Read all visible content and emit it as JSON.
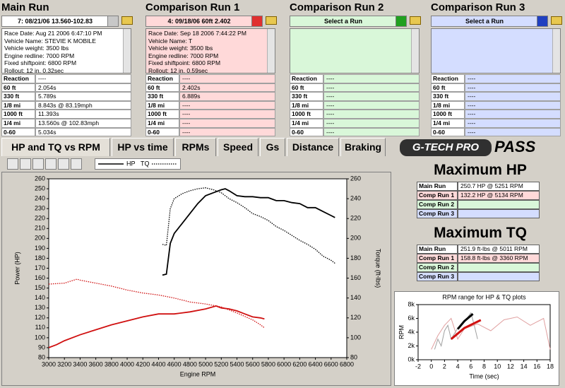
{
  "runs": [
    {
      "title": "Main Run",
      "selector": "7:  08/21/06 13.560-102.83",
      "color": "#ffffff",
      "accent": "#c8c8c8",
      "info": [
        "Race Date: Aug 21 2006  6:47:10 PM",
        "Vehicle Name: STEVIE K MOBILE",
        "Vehicle weight: 3500 lbs",
        "Engine redline: 7000 RPM",
        "Fixed shiftpoint: 6800 RPM",
        "Rollout: 12 in, 0.32sec"
      ],
      "rows": [
        [
          "Reaction",
          "----"
        ],
        [
          "60 ft",
          "2.054s"
        ],
        [
          "330 ft",
          "5.789s"
        ],
        [
          "1/8 mi",
          "8.843s @ 83.19mph"
        ],
        [
          "1000 ft",
          "11.393s"
        ],
        [
          "1/4 mi",
          "13.560s @ 102.83mph"
        ],
        [
          "0-60",
          "5.034s"
        ]
      ]
    },
    {
      "title": "Comparison Run 1",
      "selector": "4:  09/18/06 60ft 2.402",
      "color": "#ffd9d9",
      "accent": "#e03030",
      "info": [
        "Race Date: Sep 18 2006  7:44:22 PM",
        "Vehicle Name: T",
        "Vehicle weight: 3500 lbs",
        "Engine redline: 7000 RPM",
        "Fixed shiftpoint: 6800 RPM",
        "Rollout: 12 in, 0.59sec"
      ],
      "rows": [
        [
          "Reaction",
          "----"
        ],
        [
          "60 ft",
          "2.402s"
        ],
        [
          "330 ft",
          "6.889s"
        ],
        [
          "1/8 mi",
          "----"
        ],
        [
          "1000 ft",
          "----"
        ],
        [
          "1/4 mi",
          "----"
        ],
        [
          "0-60",
          "----"
        ]
      ]
    },
    {
      "title": "Comparison Run 2",
      "selector": "Select a Run",
      "color": "#d9f7d9",
      "accent": "#20a020",
      "info": [],
      "rows": [
        [
          "Reaction",
          "----"
        ],
        [
          "60 ft",
          "----"
        ],
        [
          "330 ft",
          "----"
        ],
        [
          "1/8 mi",
          "----"
        ],
        [
          "1000 ft",
          "----"
        ],
        [
          "1/4 mi",
          "----"
        ],
        [
          "0-60",
          "----"
        ]
      ]
    },
    {
      "title": "Comparison Run 3",
      "selector": "Select a Run",
      "color": "#d4ddff",
      "accent": "#2040c0",
      "info": [],
      "rows": [
        [
          "Reaction",
          "----"
        ],
        [
          "60 ft",
          "----"
        ],
        [
          "330 ft",
          "----"
        ],
        [
          "1/8 mi",
          "----"
        ],
        [
          "1000 ft",
          "----"
        ],
        [
          "1/4 mi",
          "----"
        ],
        [
          "0-60",
          "----"
        ]
      ]
    }
  ],
  "tabs": [
    "HP and TQ vs RPM",
    "HP vs time",
    "RPMs",
    "Speed",
    "Gs",
    "Distance",
    "Braking"
  ],
  "logo": {
    "brand": "G-TECH PRO",
    "mode": "PASS"
  },
  "max_hp": {
    "title": "Maximum HP",
    "rows": [
      {
        "label": "Main Run",
        "value": "250.7 HP @ 5251 RPM"
      },
      {
        "label": "Comp Run 1",
        "value": "132.2 HP @ 5134 RPM"
      },
      {
        "label": "Comp Run 2"
      },
      {
        "label": "Comp Run 3"
      }
    ]
  },
  "max_tq": {
    "title": "Maximum TQ",
    "rows": [
      {
        "label": "Main Run",
        "value": "251.9 ft-lbs @ 5011 RPM"
      },
      {
        "label": "Comp Run 1",
        "value": "158.8 ft-lbs @ 3360 RPM"
      },
      {
        "label": "Comp Run 2"
      },
      {
        "label": "Comp Run 3"
      }
    ]
  },
  "row_colors": [
    "#ffffff",
    "#ffd9d9",
    "#d9f7d9",
    "#d4ddff"
  ],
  "chart_data": [
    {
      "type": "line",
      "legend": [
        "HP",
        "TQ"
      ],
      "x_label": "Engine RPM",
      "y_label": "Power (HP)",
      "y2_label": "Torque (ft-lbs)",
      "xlim": [
        3000,
        6800
      ],
      "xticks": [
        3000,
        3200,
        3400,
        3600,
        3800,
        4000,
        4200,
        4400,
        4600,
        4800,
        5000,
        5200,
        5400,
        5600,
        5800,
        6000,
        6200,
        6400,
        6600,
        6800
      ],
      "ylim": [
        80,
        260
      ],
      "yticks": [
        80,
        90,
        100,
        110,
        120,
        130,
        140,
        150,
        160,
        170,
        180,
        190,
        200,
        210,
        220,
        230,
        240,
        250,
        260
      ],
      "y2lim": [
        80,
        260
      ],
      "y2ticks": [
        80,
        100,
        120,
        140,
        160,
        180,
        200,
        220,
        240,
        260
      ],
      "series": [
        {
          "color": "#000000",
          "style": "solid",
          "x": [
            4450,
            4500,
            4550,
            4600,
            4700,
            4800,
            4900,
            5000,
            5100,
            5200,
            5250,
            5300,
            5400,
            5500,
            5600,
            5700,
            5800,
            5900,
            6000,
            6100,
            6200,
            6300,
            6400,
            6500,
            6600,
            6650
          ],
          "values": [
            163,
            164,
            195,
            205,
            215,
            225,
            235,
            243,
            246,
            249,
            250,
            248,
            243,
            242,
            242,
            241,
            241,
            238,
            238,
            236,
            235,
            231,
            231,
            227,
            223,
            221
          ]
        },
        {
          "color": "#000000",
          "style": "dotted",
          "axis": "y2",
          "x": [
            4450,
            4500,
            4550,
            4600,
            4700,
            4800,
            4900,
            5000,
            5100,
            5200,
            5300,
            5400,
            5500,
            5600,
            5700,
            5800,
            5900,
            6000,
            6100,
            6200,
            6300,
            6400,
            6500,
            6600,
            6650
          ],
          "values": [
            194,
            193,
            230,
            240,
            245,
            248,
            250,
            251,
            249,
            246,
            240,
            236,
            231,
            225,
            222,
            218,
            212,
            208,
            203,
            198,
            194,
            189,
            182,
            178,
            175
          ]
        },
        {
          "color": "#d01010",
          "style": "solid",
          "x": [
            3000,
            3100,
            3200,
            3400,
            3600,
            3800,
            4000,
            4200,
            4400,
            4600,
            4800,
            5000,
            5134,
            5200,
            5300,
            5400,
            5500,
            5600,
            5700,
            5750
          ],
          "values": [
            90,
            93,
            97,
            103,
            108,
            113,
            117,
            121,
            124,
            124,
            126,
            129,
            132,
            130,
            129,
            127,
            124,
            121,
            120,
            119
          ]
        },
        {
          "color": "#d01010",
          "style": "dotted",
          "axis": "y2",
          "x": [
            3000,
            3200,
            3360,
            3400,
            3600,
            3800,
            4000,
            4200,
            4400,
            4600,
            4800,
            5000,
            5200,
            5400,
            5600,
            5700,
            5750
          ],
          "values": [
            154,
            155,
            159,
            158,
            155,
            152,
            148,
            145,
            143,
            140,
            136,
            134,
            131,
            125,
            118,
            113,
            110
          ]
        }
      ]
    },
    {
      "type": "line",
      "title": "RPM range for HP & TQ plots",
      "x_label": "Time (sec)",
      "y_label": "RPM",
      "xlim": [
        -2,
        18
      ],
      "xticks": [
        -2,
        0,
        2,
        4,
        6,
        8,
        10,
        12,
        14,
        16,
        18
      ],
      "ylim": [
        0,
        8000
      ],
      "yticks": [
        {
          "value": 0,
          "label": "0k"
        },
        {
          "value": 2000,
          "label": "2k"
        },
        {
          "value": 4000,
          "label": "4k"
        },
        {
          "value": 6000,
          "label": "6k"
        },
        {
          "value": 8000,
          "label": "8k"
        }
      ],
      "series": [
        {
          "color": "#a0a0a0",
          "width": 1,
          "x": [
            0.5,
            1,
            1.5,
            2,
            2.5,
            3,
            4,
            5,
            6,
            6.5,
            7
          ],
          "values": [
            1500,
            3000,
            2000,
            4200,
            5000,
            3000,
            4600,
            5500,
            6800,
            5000,
            3000
          ]
        },
        {
          "color": "#e0a0a0",
          "width": 1,
          "x": [
            0,
            1,
            2,
            3,
            4,
            5,
            7,
            9,
            11,
            13,
            15,
            17,
            18
          ],
          "values": [
            1500,
            3500,
            5000,
            6000,
            3000,
            4500,
            5200,
            4200,
            5800,
            6200,
            5000,
            6000,
            1500
          ]
        },
        {
          "color": "#000000",
          "width": 3,
          "x": [
            4,
            5,
            6.3
          ],
          "values": [
            4450,
            5600,
            6650
          ]
        },
        {
          "color": "#d01010",
          "width": 3,
          "x": [
            3,
            5,
            7.5
          ],
          "values": [
            3000,
            4600,
            5750
          ]
        }
      ]
    }
  ]
}
